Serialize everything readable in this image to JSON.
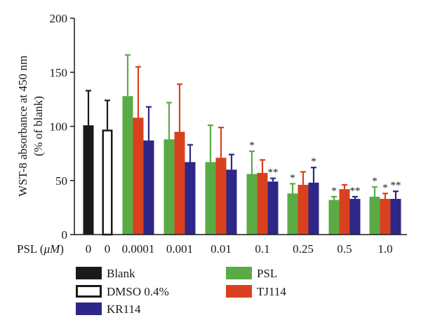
{
  "chart_data": {
    "type": "bar",
    "ylabel_line1": "WST-8 absorbance at 450 nm",
    "ylabel_line2": "(% of blank)",
    "ylim": [
      0,
      200
    ],
    "yticks": [
      "0",
      "50",
      "100",
      "150",
      "200"
    ],
    "ytick_values": [
      0,
      50,
      100,
      150,
      200
    ],
    "xaxis_prefix": "PSL (",
    "xaxis_unit": "μM",
    "xaxis_suffix": ")",
    "colors": {
      "Blank": "#1a1a1a",
      "DMSO 0.4%": "#ffffff",
      "PSL": "#5aab46",
      "TJ114": "#d9411e",
      "KR114": "#2e2787"
    },
    "groups": [
      {
        "label": "0",
        "bars": [
          {
            "series": "Blank",
            "value": 101,
            "error": 32,
            "sig": ""
          }
        ]
      },
      {
        "label": "0",
        "bars": [
          {
            "series": "DMSO 0.4%",
            "value": 97,
            "error": 27,
            "sig": ""
          }
        ]
      },
      {
        "label": "0.0001",
        "bars": [
          {
            "series": "PSL",
            "value": 128,
            "error": 38,
            "sig": ""
          },
          {
            "series": "TJ114",
            "value": 108,
            "error": 47,
            "sig": ""
          },
          {
            "series": "KR114",
            "value": 87,
            "error": 31,
            "sig": ""
          }
        ]
      },
      {
        "label": "0.001",
        "bars": [
          {
            "series": "PSL",
            "value": 88,
            "error": 34,
            "sig": ""
          },
          {
            "series": "TJ114",
            "value": 95,
            "error": 44,
            "sig": ""
          },
          {
            "series": "KR114",
            "value": 67,
            "error": 16,
            "sig": ""
          }
        ]
      },
      {
        "label": "0.01",
        "bars": [
          {
            "series": "PSL",
            "value": 67,
            "error": 34,
            "sig": ""
          },
          {
            "series": "TJ114",
            "value": 71,
            "error": 28,
            "sig": ""
          },
          {
            "series": "KR114",
            "value": 60,
            "error": 14,
            "sig": ""
          }
        ]
      },
      {
        "label": "0.1",
        "bars": [
          {
            "series": "PSL",
            "value": 56,
            "error": 21,
            "sig": "*"
          },
          {
            "series": "TJ114",
            "value": 57,
            "error": 12,
            "sig": ""
          },
          {
            "series": "KR114",
            "value": 49,
            "error": 3,
            "sig": "**"
          }
        ]
      },
      {
        "label": "0.25",
        "bars": [
          {
            "series": "PSL",
            "value": 38,
            "error": 9,
            "sig": "*"
          },
          {
            "series": "TJ114",
            "value": 46,
            "error": 12,
            "sig": ""
          },
          {
            "series": "KR114",
            "value": 48,
            "error": 14,
            "sig": "*"
          }
        ]
      },
      {
        "label": "0.5",
        "bars": [
          {
            "series": "PSL",
            "value": 32,
            "error": 3,
            "sig": "*"
          },
          {
            "series": "TJ114",
            "value": 42,
            "error": 4,
            "sig": ""
          },
          {
            "series": "KR114",
            "value": 33,
            "error": 2,
            "sig": "**"
          }
        ]
      },
      {
        "label": "1.0",
        "bars": [
          {
            "series": "PSL",
            "value": 35,
            "error": 9,
            "sig": "*"
          },
          {
            "series": "TJ114",
            "value": 33,
            "error": 5,
            "sig": "*"
          },
          {
            "series": "KR114",
            "value": 33,
            "error": 7,
            "sig": "**"
          }
        ]
      }
    ],
    "legend": [
      {
        "label": "Blank",
        "series": "Blank"
      },
      {
        "label": "DMSO 0.4%",
        "series": "DMSO 0.4%"
      },
      {
        "label": "KR114",
        "series": "KR114"
      },
      {
        "label": "PSL",
        "series": "PSL"
      },
      {
        "label": "TJ114",
        "series": "TJ114"
      }
    ]
  }
}
